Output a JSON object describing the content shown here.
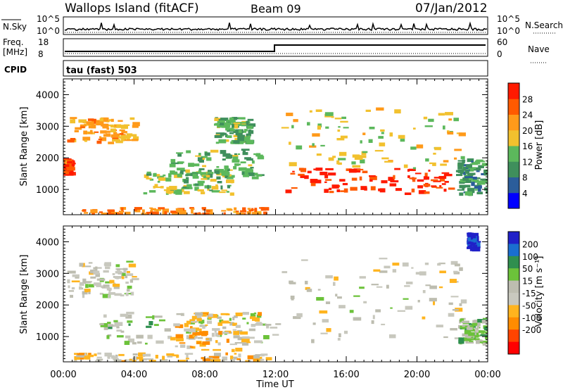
{
  "header": {
    "station": "Wallops Island (fitACF)",
    "beam": "Beam 09",
    "date": "07/Jan/2012"
  },
  "nsky": {
    "label": "N.Sky",
    "tick_high": "10^5",
    "tick_low": "10^0"
  },
  "nsearch": {
    "label": "N.Search"
  },
  "freq": {
    "label_line1": "Freq.",
    "label_line2": "[MHz]",
    "tick_high": "18",
    "tick_low": "8"
  },
  "nave": {
    "label": "Nave",
    "tick_high": "60",
    "tick_low": "0"
  },
  "cpid": {
    "label": "CPID",
    "program": "tau (fast) 503"
  },
  "colors": {
    "power_scale": [
      "#0000ff",
      "#2b5d9b",
      "#3f8f5c",
      "#5cb85c",
      "#f2c12e",
      "#ff9a1a",
      "#ff5a00",
      "#ff1a00"
    ],
    "velocity_scale": [
      "#2020c8",
      "#1a6ed0",
      "#2f8f4f",
      "#6cc23a",
      "#bdbdb0",
      "#c8c8be",
      "#ffb41e",
      "#ff8c00",
      "#ff4400",
      "#ff0000"
    ],
    "ground_scatter": "#bebeb4"
  },
  "chart_data": [
    {
      "type": "heatmap",
      "title": "",
      "xlabel": "",
      "ylabel": "Slant Range [km]",
      "xlim": [
        "00:00",
        "24:00"
      ],
      "ylim": [
        200,
        4500
      ],
      "x_ticks": [
        "00:00",
        "04:00",
        "08:00",
        "12:00",
        "16:00",
        "20:00",
        "00:00"
      ],
      "y_ticks": [
        "1000",
        "2000",
        "3000",
        "4000"
      ],
      "colorbar": {
        "label": "Power [dB]",
        "ticks": [
          "4",
          "8",
          "12",
          "16",
          "20",
          "24",
          "28"
        ],
        "range": [
          0,
          30
        ]
      },
      "regions": [
        {
          "t": [
            0.2,
            4.0
          ],
          "r": [
            2500,
            3300
          ],
          "value": 20
        },
        {
          "t": [
            0.0,
            0.3
          ],
          "r": [
            1500,
            2000
          ],
          "value": 26
        },
        {
          "t": [
            1.0,
            11.5
          ],
          "r": [
            250,
            450
          ],
          "value": 22
        },
        {
          "t": [
            4.5,
            9.5
          ],
          "r": [
            900,
            1600
          ],
          "value": 14
        },
        {
          "t": [
            6.0,
            11.0
          ],
          "r": [
            1400,
            2300
          ],
          "value": 12
        },
        {
          "t": [
            8.5,
            10.5
          ],
          "r": [
            2500,
            3300
          ],
          "value": 12
        },
        {
          "t": [
            12.4,
            21.8
          ],
          "r": [
            900,
            1700
          ],
          "value": 28
        },
        {
          "t": [
            12.3,
            22.5
          ],
          "r": [
            1700,
            3600
          ],
          "value": 16
        },
        {
          "t": [
            22.2,
            24.0
          ],
          "r": [
            900,
            2000
          ],
          "value": 10
        }
      ]
    },
    {
      "type": "heatmap",
      "title": "",
      "xlabel": "Time UT",
      "ylabel": "Slant Range [km]",
      "xlim": [
        "00:00",
        "24:00"
      ],
      "ylim": [
        200,
        4500
      ],
      "x_ticks": [
        "00:00",
        "04:00",
        "08:00",
        "12:00",
        "16:00",
        "20:00",
        "00:00"
      ],
      "y_ticks": [
        "1000",
        "2000",
        "3000",
        "4000"
      ],
      "colorbar": {
        "label": "Velocity [m s⁻¹]",
        "ticks": [
          "200",
          "100",
          "50",
          "15",
          "-15",
          "-50",
          "-100",
          "-200"
        ],
        "range": [
          -250,
          250
        ]
      },
      "regions": [
        {
          "t": [
            0.2,
            4.0
          ],
          "r": [
            2300,
            3400
          ],
          "value": 0
        },
        {
          "t": [
            12.3,
            22.5
          ],
          "r": [
            900,
            3500
          ],
          "value": 0
        },
        {
          "t": [
            2.0,
            12.0
          ],
          "r": [
            800,
            1800
          ],
          "value": 40
        },
        {
          "t": [
            6.0,
            11.0
          ],
          "r": [
            600,
            1800
          ],
          "value": -60
        },
        {
          "t": [
            0.5,
            11.5
          ],
          "r": [
            250,
            500
          ],
          "value": -50
        },
        {
          "t": [
            22.3,
            24.0
          ],
          "r": [
            800,
            1600
          ],
          "value": 60
        },
        {
          "t": [
            22.8,
            23.2
          ],
          "r": [
            3800,
            4300
          ],
          "value": 220
        }
      ]
    }
  ]
}
